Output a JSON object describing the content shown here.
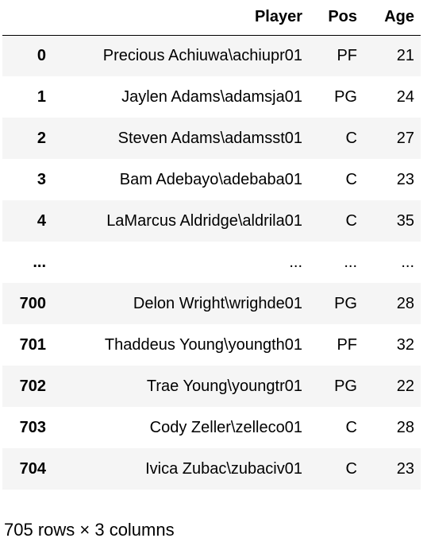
{
  "table": {
    "columns": [
      "",
      "Player",
      "Pos",
      "Age"
    ],
    "rows": [
      {
        "index": "0",
        "player": "Precious Achiuwa\\achiupr01",
        "pos": "PF",
        "age": "21"
      },
      {
        "index": "1",
        "player": "Jaylen Adams\\adamsja01",
        "pos": "PG",
        "age": "24"
      },
      {
        "index": "2",
        "player": "Steven Adams\\adamsst01",
        "pos": "C",
        "age": "27"
      },
      {
        "index": "3",
        "player": "Bam Adebayo\\adebaba01",
        "pos": "C",
        "age": "23"
      },
      {
        "index": "4",
        "player": "LaMarcus Aldridge\\aldrila01",
        "pos": "C",
        "age": "35"
      },
      {
        "index": "...",
        "player": "...",
        "pos": "...",
        "age": "..."
      },
      {
        "index": "700",
        "player": "Delon Wright\\wrighde01",
        "pos": "PG",
        "age": "28"
      },
      {
        "index": "701",
        "player": "Thaddeus Young\\youngth01",
        "pos": "PF",
        "age": "32"
      },
      {
        "index": "702",
        "player": "Trae Young\\youngtr01",
        "pos": "PG",
        "age": "22"
      },
      {
        "index": "703",
        "player": "Cody Zeller\\zelleco01",
        "pos": "C",
        "age": "28"
      },
      {
        "index": "704",
        "player": "Ivica Zubac\\zubaciv01",
        "pos": "C",
        "age": "23"
      }
    ]
  },
  "footer": {
    "shape_text": "705 rows × 3 columns"
  }
}
